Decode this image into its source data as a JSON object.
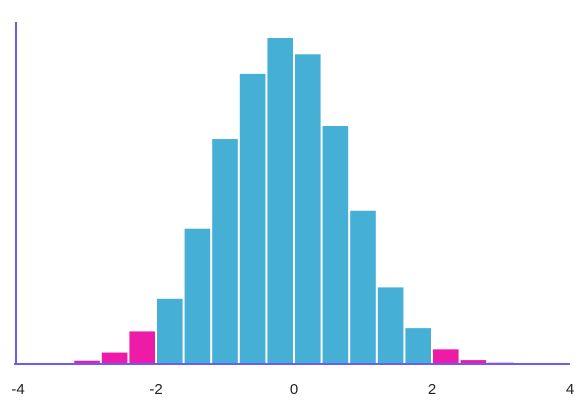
{
  "chart_data": {
    "type": "bar",
    "title": "",
    "xlabel": "",
    "ylabel": "",
    "xlim": [
      -4,
      4
    ],
    "ylim": [
      0,
      100
    ],
    "bin_width": 0.4,
    "bins": [
      {
        "x0": -4.0,
        "x1": -3.6,
        "value": 0.3
      },
      {
        "x0": -3.6,
        "x1": -3.2,
        "value": 0.2
      },
      {
        "x0": -3.2,
        "x1": -2.8,
        "value": 1.0
      },
      {
        "x0": -2.8,
        "x1": -2.4,
        "value": 3.5
      },
      {
        "x0": -2.4,
        "x1": -2.0,
        "value": 10.0
      },
      {
        "x0": -2.0,
        "x1": -1.6,
        "value": 20.0
      },
      {
        "x0": -1.6,
        "x1": -1.2,
        "value": 41.5
      },
      {
        "x0": -1.2,
        "x1": -0.8,
        "value": 69.0
      },
      {
        "x0": -0.8,
        "x1": -0.4,
        "value": 89.0
      },
      {
        "x0": -0.4,
        "x1": 0.0,
        "value": 100.0
      },
      {
        "x0": 0.0,
        "x1": 0.4,
        "value": 95.0
      },
      {
        "x0": 0.4,
        "x1": 0.8,
        "value": 73.0
      },
      {
        "x0": 0.8,
        "x1": 1.2,
        "value": 47.0
      },
      {
        "x0": 1.2,
        "x1": 1.6,
        "value": 23.5
      },
      {
        "x0": 1.6,
        "x1": 2.0,
        "value": 11.0
      },
      {
        "x0": 2.0,
        "x1": 2.4,
        "value": 4.5
      },
      {
        "x0": 2.4,
        "x1": 2.8,
        "value": 1.2
      },
      {
        "x0": 2.8,
        "x1": 3.2,
        "value": 0.4
      }
    ],
    "x_ticks": [
      "-4",
      "-2",
      "0",
      "2",
      "4"
    ],
    "tail_threshold": 2.0,
    "colors": {
      "center": "#45afd6",
      "tail": "#ee1aa8",
      "axis": "#6a5cf5"
    }
  }
}
